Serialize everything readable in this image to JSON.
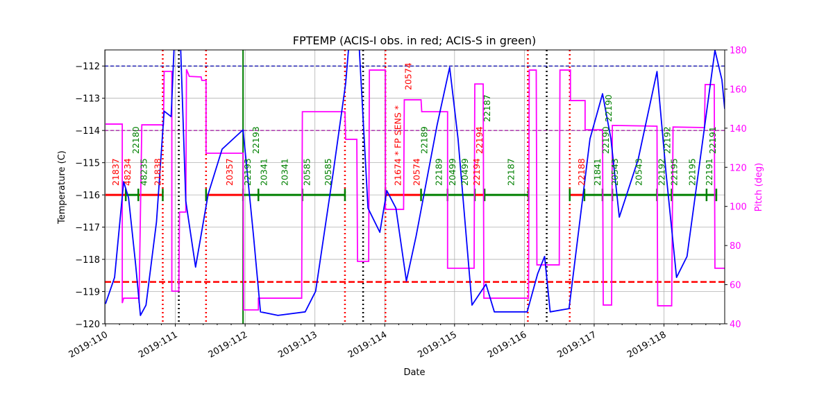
{
  "chart_data": {
    "type": "line",
    "title": "FPTEMP (ACIS-I obs. in red; ACIS-S in green)",
    "xlabel": "Date",
    "ylabel": "Temperature (C)",
    "y2label": "Pitch (deg)",
    "xlim": [
      109.99,
      118.87
    ],
    "ylim": [
      -120,
      -111.5
    ],
    "y2lim": [
      40,
      180
    ],
    "grid": true,
    "xticks": [
      {
        "v": 110,
        "label": "2019:110"
      },
      {
        "v": 111,
        "label": "2019:111"
      },
      {
        "v": 112,
        "label": "2019:112"
      },
      {
        "v": 113,
        "label": "2019:113"
      },
      {
        "v": 114,
        "label": "2019:114"
      },
      {
        "v": 115,
        "label": "2019:115"
      },
      {
        "v": 116,
        "label": "2019:116"
      },
      {
        "v": 117,
        "label": "2019:117"
      },
      {
        "v": 118,
        "label": "2019:118"
      }
    ],
    "yticks": [
      -120,
      -119,
      -118,
      -117,
      -116,
      -115,
      -114,
      -113,
      -112
    ],
    "y2ticks": [
      40,
      60,
      80,
      100,
      120,
      140,
      160,
      180
    ],
    "colors": {
      "temperature": "#0000ff",
      "pitch": "#ff00ff",
      "acis_i": "#ff0000",
      "acis_s": "#008000",
      "planning_limit": "#0000aa",
      "margin": "#990099",
      "lower": "#ff0000",
      "comm": "#000000"
    },
    "temperature": [
      [
        110.0,
        -119.38
      ],
      [
        110.13,
        -118.56
      ],
      [
        110.26,
        -115.59
      ],
      [
        110.33,
        -116.09
      ],
      [
        110.43,
        -118.13
      ],
      [
        110.5,
        -119.74
      ],
      [
        110.58,
        -119.42
      ],
      [
        110.73,
        -116.84
      ],
      [
        110.84,
        -113.4
      ],
      [
        110.94,
        -113.57
      ],
      [
        110.99,
        -111.03
      ],
      [
        111.07,
        -111.03
      ],
      [
        111.15,
        -116.19
      ],
      [
        111.29,
        -118.24
      ],
      [
        111.47,
        -115.98
      ],
      [
        111.67,
        -114.58
      ],
      [
        111.97,
        -113.98
      ],
      [
        112.12,
        -117.27
      ],
      [
        112.22,
        -119.63
      ],
      [
        112.47,
        -119.74
      ],
      [
        112.86,
        -119.63
      ],
      [
        113.01,
        -118.99
      ],
      [
        113.26,
        -115.33
      ],
      [
        113.44,
        -112.54
      ],
      [
        113.49,
        -111.25
      ],
      [
        113.63,
        -111.25
      ],
      [
        113.76,
        -116.41
      ],
      [
        113.93,
        -117.16
      ],
      [
        114.03,
        -115.87
      ],
      [
        114.16,
        -116.41
      ],
      [
        114.31,
        -118.67
      ],
      [
        114.45,
        -117.27
      ],
      [
        114.75,
        -113.83
      ],
      [
        114.93,
        -112.04
      ],
      [
        115.05,
        -114.26
      ],
      [
        115.25,
        -119.42
      ],
      [
        115.45,
        -118.77
      ],
      [
        115.57,
        -119.63
      ],
      [
        116.04,
        -119.63
      ],
      [
        116.19,
        -118.45
      ],
      [
        116.29,
        -117.91
      ],
      [
        116.37,
        -119.63
      ],
      [
        116.64,
        -119.53
      ],
      [
        116.94,
        -114.26
      ],
      [
        117.12,
        -112.86
      ],
      [
        117.24,
        -114.26
      ],
      [
        117.36,
        -116.69
      ],
      [
        117.63,
        -114.9
      ],
      [
        117.9,
        -112.17
      ],
      [
        118.03,
        -115.33
      ],
      [
        118.18,
        -118.56
      ],
      [
        118.33,
        -117.91
      ],
      [
        118.73,
        -111.51
      ],
      [
        118.83,
        -112.43
      ],
      [
        118.87,
        -113.33
      ]
    ],
    "pitch": [
      [
        110.0,
        142.1
      ],
      [
        110.24,
        142.1
      ],
      [
        110.24,
        50.6
      ],
      [
        110.26,
        53.1
      ],
      [
        110.48,
        53.1
      ],
      [
        110.48,
        50.6
      ],
      [
        110.52,
        141.7
      ],
      [
        110.83,
        141.7
      ],
      [
        110.84,
        169.0
      ],
      [
        110.95,
        169.0
      ],
      [
        110.95,
        56.7
      ],
      [
        111.05,
        56.7
      ],
      [
        111.06,
        97.1
      ],
      [
        111.15,
        97.1
      ],
      [
        111.16,
        170.1
      ],
      [
        111.2,
        166.5
      ],
      [
        111.37,
        166.2
      ],
      [
        111.38,
        164.4
      ],
      [
        111.44,
        164.4
      ],
      [
        111.44,
        127.2
      ],
      [
        111.97,
        127.2
      ],
      [
        111.98,
        47.1
      ],
      [
        112.19,
        47.1
      ],
      [
        112.19,
        53.1
      ],
      [
        112.81,
        53.1
      ],
      [
        112.82,
        148.4
      ],
      [
        113.43,
        148.4
      ],
      [
        113.44,
        134.3
      ],
      [
        113.6,
        134.3
      ],
      [
        113.61,
        71.9
      ],
      [
        113.77,
        71.9
      ],
      [
        113.78,
        169.7
      ],
      [
        114.01,
        169.7
      ],
      [
        114.01,
        98.5
      ],
      [
        114.27,
        98.5
      ],
      [
        114.28,
        154.5
      ],
      [
        114.52,
        154.5
      ],
      [
        114.53,
        148.4
      ],
      [
        114.9,
        148.4
      ],
      [
        114.9,
        68.4
      ],
      [
        115.28,
        68.4
      ],
      [
        115.29,
        162.6
      ],
      [
        115.41,
        162.6
      ],
      [
        115.42,
        53.1
      ],
      [
        116.06,
        53.1
      ],
      [
        116.07,
        169.7
      ],
      [
        116.17,
        169.7
      ],
      [
        116.18,
        70.1
      ],
      [
        116.5,
        70.1
      ],
      [
        116.51,
        169.7
      ],
      [
        116.66,
        169.7
      ],
      [
        116.66,
        154.1
      ],
      [
        116.87,
        154.1
      ],
      [
        116.87,
        139.2
      ],
      [
        117.12,
        139.2
      ],
      [
        117.13,
        49.6
      ],
      [
        117.25,
        49.6
      ],
      [
        117.26,
        141.4
      ],
      [
        117.9,
        141.0
      ],
      [
        117.91,
        49.2
      ],
      [
        118.11,
        49.2
      ],
      [
        118.13,
        140.6
      ],
      [
        118.58,
        140.3
      ],
      [
        118.59,
        162.3
      ],
      [
        118.72,
        162.3
      ],
      [
        118.73,
        68.4
      ],
      [
        118.87,
        68.4
      ]
    ],
    "hlines": [
      {
        "y": -112,
        "color": "#0000aa",
        "style": "dashed"
      },
      {
        "y": -114,
        "color": "#990099",
        "style": "dashed"
      },
      {
        "y": -118.7,
        "color": "#ff0000",
        "style": "bigdash"
      }
    ],
    "vlines": [
      {
        "x": 110.82,
        "color": "#ff0000",
        "style": "dotted"
      },
      {
        "x": 111.44,
        "color": "#ff0000",
        "style": "dotted"
      },
      {
        "x": 113.43,
        "color": "#ff0000",
        "style": "dotted"
      },
      {
        "x": 114.01,
        "color": "#ff0000",
        "style": "dotted"
      },
      {
        "x": 116.05,
        "color": "#ff0000",
        "style": "dotted"
      },
      {
        "x": 116.65,
        "color": "#ff0000",
        "style": "dotted"
      },
      {
        "x": 111.05,
        "color": "#000000",
        "style": "dotted"
      },
      {
        "x": 113.69,
        "color": "#000000",
        "style": "dotted"
      },
      {
        "x": 116.32,
        "color": "#000000",
        "style": "dotted"
      },
      {
        "x": 111.97,
        "color": "#008000",
        "style": "solid"
      }
    ],
    "obs_level": -116,
    "obs_segments": [
      {
        "from": 110.0,
        "to": 110.28,
        "inst": "I"
      },
      {
        "from": 110.28,
        "to": 110.48,
        "inst": "S"
      },
      {
        "from": 110.48,
        "to": 110.82,
        "inst": "I"
      },
      {
        "from": 111.44,
        "to": 111.97,
        "inst": "I"
      },
      {
        "from": 111.97,
        "to": 113.43,
        "inst": "S"
      },
      {
        "from": 114.01,
        "to": 114.52,
        "inst": "I"
      },
      {
        "from": 114.52,
        "to": 115.29,
        "inst": "S"
      },
      {
        "from": 115.29,
        "to": 115.43,
        "inst": "I"
      },
      {
        "from": 115.43,
        "to": 116.06,
        "inst": "S"
      },
      {
        "from": 116.65,
        "to": 116.86,
        "inst": "I"
      },
      {
        "from": 116.86,
        "to": 118.75,
        "inst": "S"
      }
    ],
    "obs_ticks": [
      110.29,
      110.47,
      110.82,
      111.44,
      111.97,
      112.19,
      112.82,
      113.43,
      114.01,
      114.52,
      114.9,
      115.29,
      115.43,
      116.06,
      116.65,
      116.86,
      117.12,
      117.26,
      117.9,
      118.11,
      118.61,
      118.75
    ],
    "obs_labels": [
      {
        "x": 110.14,
        "text": "21837",
        "inst": "I"
      },
      {
        "x": 110.31,
        "text": "48234",
        "inst": "I"
      },
      {
        "x": 110.43,
        "text": "22180",
        "inst": "S"
      },
      {
        "x": 110.54,
        "text": "48235",
        "inst": "S"
      },
      {
        "x": 110.74,
        "text": "21838",
        "inst": "I"
      },
      {
        "x": 111.77,
        "text": "20357",
        "inst": "I"
      },
      {
        "x": 112.03,
        "text": "22193",
        "inst": "S"
      },
      {
        "x": 112.15,
        "text": "22193",
        "inst": "S"
      },
      {
        "x": 112.26,
        "text": "20341",
        "inst": "S"
      },
      {
        "x": 112.56,
        "text": "20341",
        "inst": "S"
      },
      {
        "x": 112.88,
        "text": "20585",
        "inst": "S"
      },
      {
        "x": 113.18,
        "text": "20585",
        "inst": "S"
      },
      {
        "x": 114.18,
        "text": "21674 * FP SENS *",
        "inst": "I"
      },
      {
        "x": 114.33,
        "text": "20574",
        "inst": "I"
      },
      {
        "x": 114.45,
        "text": "20574",
        "inst": "I"
      },
      {
        "x": 114.56,
        "text": "22189",
        "inst": "S"
      },
      {
        "x": 114.77,
        "text": "22189",
        "inst": "S"
      },
      {
        "x": 114.96,
        "text": "20499",
        "inst": "S"
      },
      {
        "x": 115.14,
        "text": "20499",
        "inst": "S"
      },
      {
        "x": 115.31,
        "text": "22194",
        "inst": "I"
      },
      {
        "x": 115.35,
        "text": "22194",
        "inst": "I"
      },
      {
        "x": 115.46,
        "text": "22187",
        "inst": "S"
      },
      {
        "x": 115.8,
        "text": "22187",
        "inst": "S"
      },
      {
        "x": 116.81,
        "text": "22188",
        "inst": "I"
      },
      {
        "x": 117.04,
        "text": "21841",
        "inst": "S"
      },
      {
        "x": 117.16,
        "text": "22190",
        "inst": "S"
      },
      {
        "x": 117.2,
        "text": "22190",
        "inst": "S"
      },
      {
        "x": 117.29,
        "text": "20543",
        "inst": "S"
      },
      {
        "x": 117.63,
        "text": "20543",
        "inst": "S"
      },
      {
        "x": 117.96,
        "text": "22192",
        "inst": "S"
      },
      {
        "x": 118.04,
        "text": "22192",
        "inst": "S"
      },
      {
        "x": 118.14,
        "text": "22195",
        "inst": "S"
      },
      {
        "x": 118.4,
        "text": "22195",
        "inst": "S"
      },
      {
        "x": 118.64,
        "text": "22191",
        "inst": "S"
      },
      {
        "x": 118.69,
        "text": "22191",
        "inst": "S"
      }
    ]
  }
}
